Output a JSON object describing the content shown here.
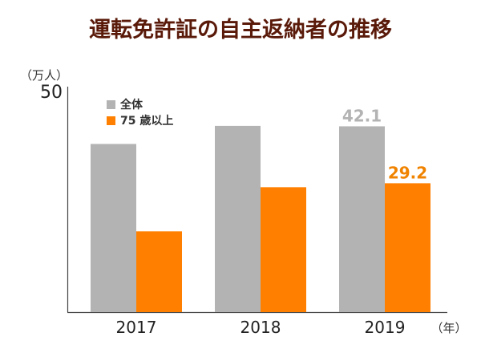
{
  "chart_data": {
    "type": "bar",
    "title": "運転免許証の自主返納者の推移",
    "y_unit": "（万人）",
    "x_unit": "（年）",
    "ylim": [
      0,
      50
    ],
    "y_tick_labels": [
      "50"
    ],
    "categories": [
      "2017",
      "2018",
      "2019"
    ],
    "legend_position": "top-left",
    "grid": false,
    "series": [
      {
        "name": "全体",
        "color": "#b3b3b3",
        "label_color": "#b3b3b3",
        "values": [
          38.1,
          42.2,
          42.1
        ],
        "data_labels": [
          null,
          null,
          "42.1"
        ]
      },
      {
        "name": "75 歳以上",
        "color": "#ff8000",
        "label_color": "#f08300",
        "values": [
          18.3,
          28.3,
          29.2
        ],
        "data_labels": [
          null,
          null,
          "29.2"
        ]
      }
    ]
  }
}
